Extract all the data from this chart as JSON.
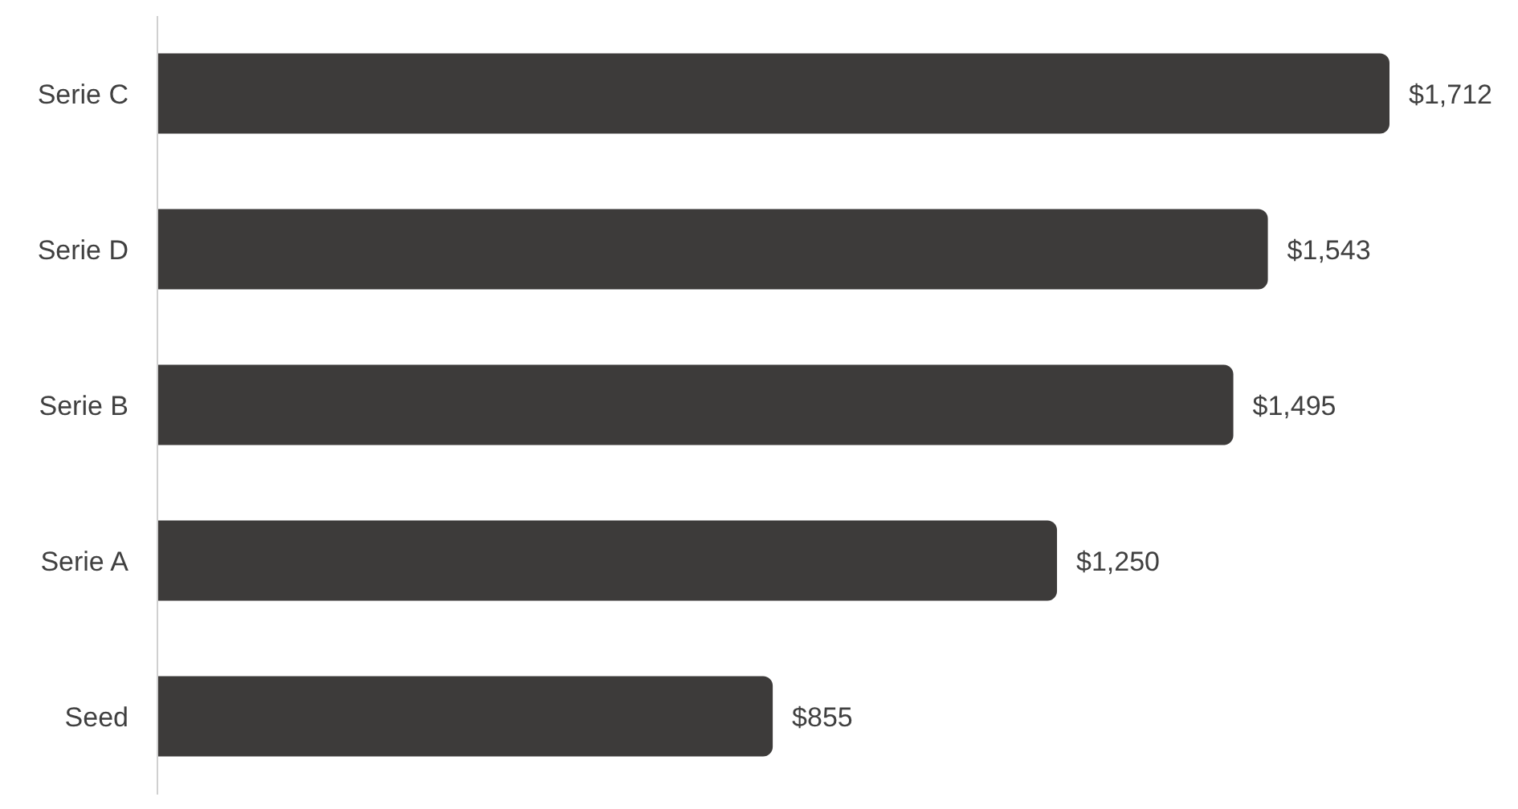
{
  "chart_data": {
    "type": "bar",
    "orientation": "horizontal",
    "categories": [
      "Serie C",
      "Serie D",
      "Serie B",
      "Serie A",
      "Seed"
    ],
    "values": [
      1712,
      1543,
      1495,
      1250,
      855
    ],
    "value_labels": [
      "$1,712",
      "$1,543",
      "$1,495",
      "$1,250",
      "$855"
    ],
    "color": "#3d3b3a",
    "grid": false,
    "tick_labels": "y"
  }
}
